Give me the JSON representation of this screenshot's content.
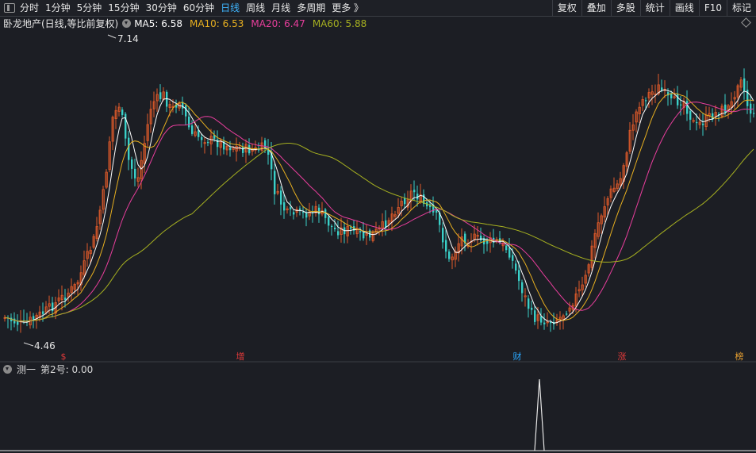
{
  "toolbar": {
    "periods": [
      "分时",
      "1分钟",
      "5分钟",
      "15分钟",
      "30分钟",
      "60分钟",
      "日线",
      "周线",
      "月线",
      "多周期",
      "更多 》"
    ],
    "active_period": "日线",
    "tools": [
      "复权",
      "叠加",
      "多股",
      "统计",
      "画线",
      "F10",
      "标记"
    ]
  },
  "legend": {
    "stock": "卧龙地产(日线,等比前复权)",
    "ma": [
      {
        "label": "MA5: 6.58",
        "color": "#ffffff"
      },
      {
        "label": "MA10: 6.53",
        "color": "#e8b020"
      },
      {
        "label": "MA20: 6.47",
        "color": "#e83e9c"
      },
      {
        "label": "MA60: 5.88",
        "color": "#a6b020"
      }
    ]
  },
  "chart_data": {
    "type": "candlestick",
    "annotations": {
      "high": "7.14",
      "low": "4.46"
    },
    "markers": [
      {
        "label": "$",
        "color": "#e03a3a"
      },
      {
        "label": "增",
        "color": "#e03a3a"
      },
      {
        "label": "财",
        "color": "#2aa8ff"
      },
      {
        "label": "涨",
        "color": "#e03a3a"
      },
      {
        "label": "榜",
        "color": "#e8a030"
      }
    ],
    "colors": {
      "up": "#e05a2a",
      "down": "#3ad0c8",
      "background": "#1c1e24"
    }
  },
  "indicator": {
    "title": "测一",
    "value_label": "第2号: 0.00"
  }
}
